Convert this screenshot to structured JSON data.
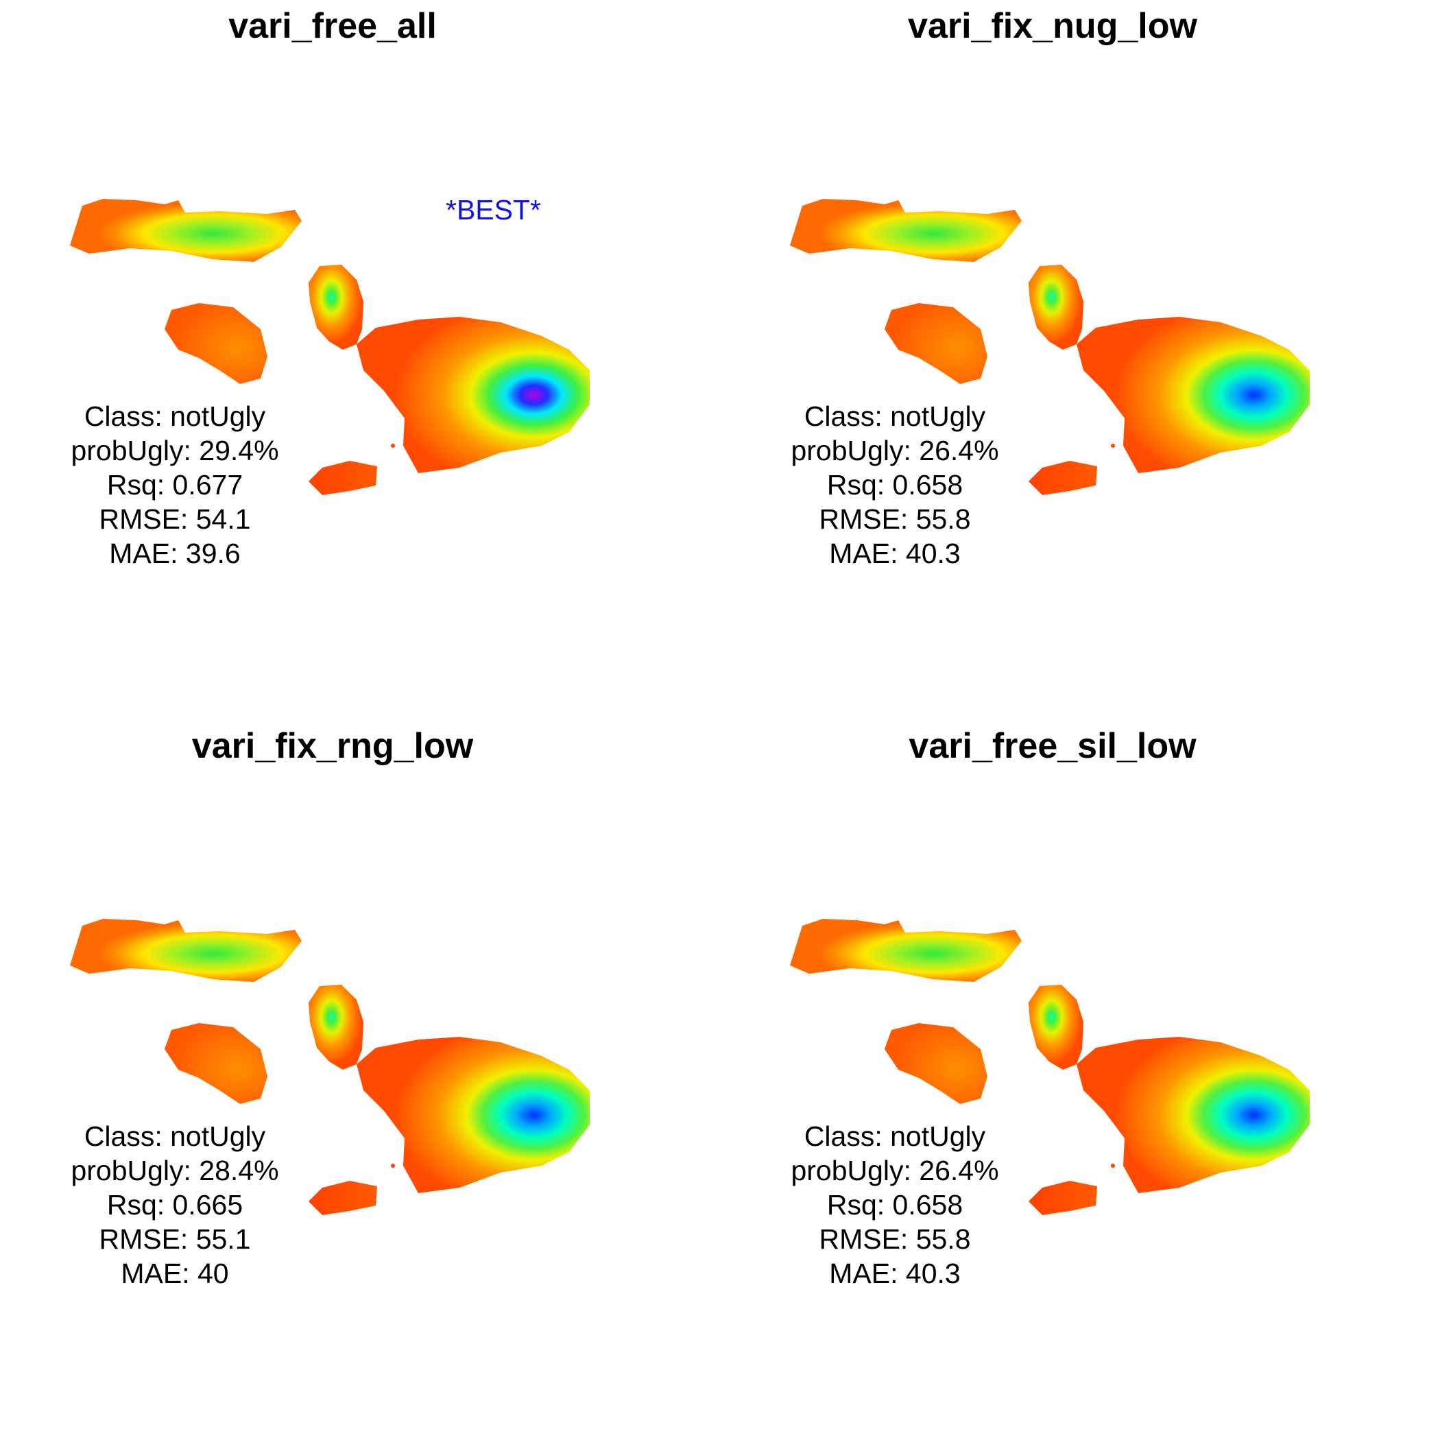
{
  "panels": [
    {
      "title": "vari_free_all",
      "best_label": "*BEST*",
      "stats": {
        "class": "Class: notUgly",
        "prob": "probUgly: 29.4%",
        "rsq": "Rsq: 0.677",
        "rmse": "RMSE: 54.1",
        "mae": "MAE: 39.6"
      }
    },
    {
      "title": "vari_fix_nug_low",
      "stats": {
        "class": "Class: notUgly",
        "prob": "probUgly: 26.4%",
        "rsq": "Rsq: 0.658",
        "rmse": "RMSE: 55.8",
        "mae": "MAE: 40.3"
      }
    },
    {
      "title": "vari_fix_rng_low",
      "stats": {
        "class": "Class: notUgly",
        "prob": "probUgly: 28.4%",
        "rsq": "Rsq: 0.665",
        "rmse": "RMSE: 55.1",
        "mae": "MAE: 40"
      }
    },
    {
      "title": "vari_free_sil_low",
      "stats": {
        "class": "Class: notUgly",
        "prob": "probUgly: 26.4%",
        "rsq": "Rsq: 0.658",
        "rmse": "RMSE: 55.8",
        "mae": "MAE: 40.3"
      }
    }
  ],
  "colors": {
    "low": "#ff3a00",
    "mid_orange": "#ff8a00",
    "yellow": "#ffee00",
    "green": "#3ff03f",
    "cyan": "#00ffd5",
    "blue": "#0030ff",
    "violet": "#b000ff",
    "best_text": "#1010e8"
  }
}
